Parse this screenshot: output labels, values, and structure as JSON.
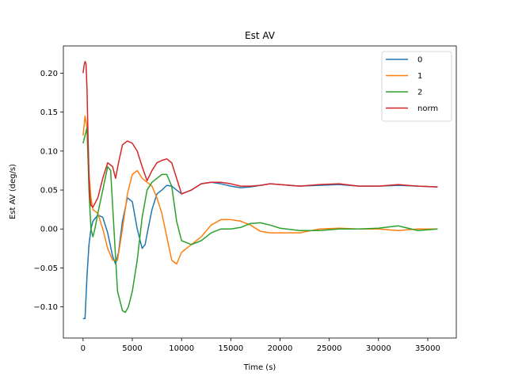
{
  "chart_data": {
    "type": "line",
    "title": "Est AV",
    "xlabel": "Time (s)",
    "ylabel": "Est AV (deg/s)",
    "xlim": [
      -2000,
      37900
    ],
    "ylim": [
      -0.14,
      0.235
    ],
    "xticks": [
      0,
      5000,
      10000,
      15000,
      20000,
      25000,
      30000,
      35000
    ],
    "xtick_labels": [
      "0",
      "5000",
      "10000",
      "15000",
      "20000",
      "25000",
      "30000",
      "35000"
    ],
    "yticks": [
      -0.1,
      -0.05,
      0.0,
      0.05,
      0.1,
      0.15,
      0.2
    ],
    "ytick_labels": [
      "−0.10",
      "−0.05",
      "0.00",
      "0.05",
      "0.10",
      "0.15",
      "0.20"
    ],
    "grid": false,
    "legend_position": "top-right",
    "series": [
      {
        "name": "0",
        "color": "#1f77b4",
        "x": [
          0,
          200,
          400,
          600,
          800,
          1000,
          1500,
          2000,
          2500,
          3000,
          3300,
          3600,
          4000,
          4500,
          5000,
          5500,
          6000,
          6300,
          6600,
          7000,
          7500,
          8000,
          8500,
          9000,
          9500,
          10000,
          11000,
          12000,
          13000,
          14000,
          15000,
          16000,
          17000,
          18000,
          19000,
          20000,
          22000,
          24000,
          26000,
          28000,
          30000,
          32000,
          34000,
          36000
        ],
        "values": [
          -0.115,
          -0.115,
          -0.06,
          -0.02,
          0.0,
          0.01,
          0.018,
          0.015,
          -0.005,
          -0.035,
          -0.045,
          -0.03,
          0.01,
          0.04,
          0.035,
          0.0,
          -0.025,
          -0.02,
          0.0,
          0.025,
          0.045,
          0.05,
          0.056,
          0.055,
          0.05,
          0.045,
          0.05,
          0.058,
          0.06,
          0.058,
          0.055,
          0.053,
          0.054,
          0.056,
          0.058,
          0.057,
          0.055,
          0.056,
          0.057,
          0.055,
          0.055,
          0.056,
          0.055,
          0.054
        ]
      },
      {
        "name": "1",
        "color": "#ff7f0e",
        "x": [
          0,
          200,
          400,
          600,
          800,
          1000,
          1500,
          2000,
          2500,
          3000,
          3500,
          4000,
          4500,
          5000,
          5500,
          6000,
          6500,
          7000,
          7500,
          8000,
          8500,
          9000,
          9500,
          10000,
          11000,
          12000,
          13000,
          14000,
          15000,
          16000,
          17000,
          18000,
          19000,
          20000,
          22000,
          24000,
          26000,
          28000,
          30000,
          32000,
          34000,
          36000
        ],
        "values": [
          0.12,
          0.145,
          0.13,
          0.07,
          0.04,
          0.025,
          0.02,
          0.0,
          -0.025,
          -0.04,
          -0.04,
          0.0,
          0.045,
          0.07,
          0.075,
          0.065,
          0.06,
          0.055,
          0.04,
          0.02,
          -0.01,
          -0.04,
          -0.045,
          -0.03,
          -0.02,
          -0.01,
          0.005,
          0.012,
          0.012,
          0.01,
          0.005,
          -0.003,
          -0.005,
          -0.005,
          -0.005,
          0.0,
          0.001,
          0.0,
          0.0,
          -0.002,
          0.0,
          0.0
        ]
      },
      {
        "name": "2",
        "color": "#2ca02c",
        "x": [
          0,
          200,
          400,
          600,
          800,
          1000,
          1200,
          1500,
          2000,
          2500,
          2800,
          3000,
          3500,
          4000,
          4300,
          4600,
          5000,
          5500,
          6000,
          6500,
          7000,
          7500,
          8000,
          8500,
          9000,
          9500,
          10000,
          11000,
          12000,
          13000,
          14000,
          15000,
          16000,
          17000,
          18000,
          19000,
          20000,
          22000,
          24000,
          26000,
          28000,
          30000,
          32000,
          34000,
          36000
        ],
        "values": [
          0.11,
          0.12,
          0.13,
          0.05,
          0.0,
          -0.01,
          0.0,
          0.02,
          0.05,
          0.08,
          0.075,
          0.03,
          -0.08,
          -0.105,
          -0.107,
          -0.1,
          -0.08,
          -0.04,
          0.015,
          0.05,
          0.06,
          0.065,
          0.07,
          0.07,
          0.055,
          0.01,
          -0.015,
          -0.02,
          -0.015,
          -0.005,
          0.0,
          0.0,
          0.002,
          0.007,
          0.008,
          0.005,
          0.001,
          -0.002,
          -0.002,
          0.0,
          0.0,
          0.001,
          0.004,
          -0.002,
          0.0
        ]
      },
      {
        "name": "norm",
        "color": "#d62728",
        "x": [
          0,
          100,
          200,
          300,
          400,
          500,
          600,
          700,
          800,
          1000,
          1500,
          2000,
          2500,
          3000,
          3300,
          3600,
          4000,
          4500,
          5000,
          5500,
          6000,
          6500,
          7000,
          7500,
          8000,
          8500,
          9000,
          9500,
          10000,
          11000,
          12000,
          13000,
          14000,
          15000,
          16000,
          17000,
          18000,
          19000,
          20000,
          22000,
          24000,
          26000,
          28000,
          30000,
          32000,
          34000,
          36000
        ],
        "values": [
          0.2,
          0.21,
          0.215,
          0.212,
          0.18,
          0.12,
          0.07,
          0.04,
          0.03,
          0.028,
          0.04,
          0.065,
          0.085,
          0.08,
          0.065,
          0.085,
          0.108,
          0.113,
          0.11,
          0.1,
          0.08,
          0.062,
          0.075,
          0.085,
          0.088,
          0.09,
          0.085,
          0.065,
          0.045,
          0.05,
          0.058,
          0.06,
          0.06,
          0.058,
          0.055,
          0.055,
          0.056,
          0.058,
          0.057,
          0.055,
          0.057,
          0.058,
          0.055,
          0.055,
          0.057,
          0.055,
          0.054
        ]
      }
    ]
  }
}
